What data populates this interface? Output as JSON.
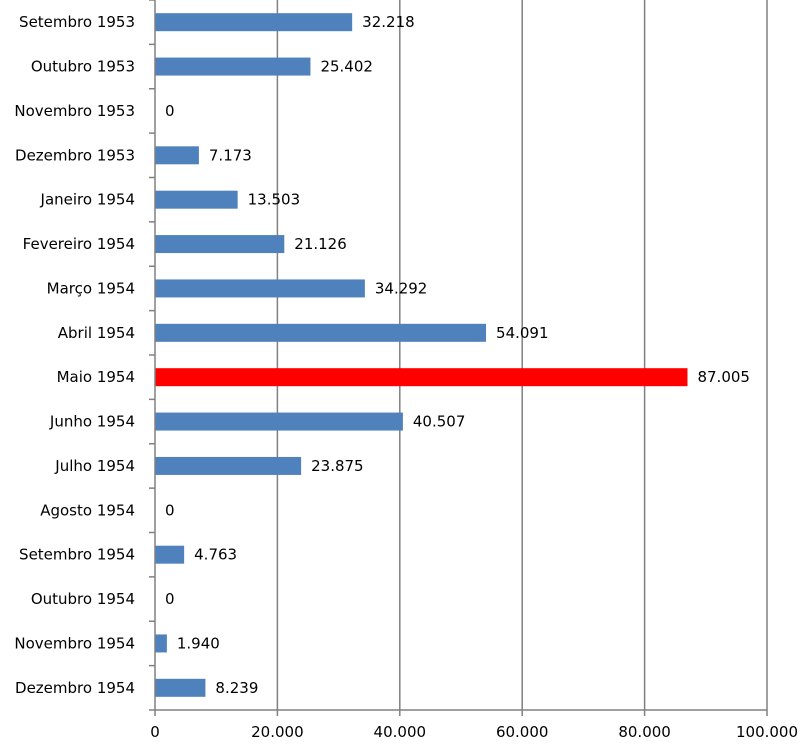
{
  "chart_data": {
    "type": "bar",
    "orientation": "horizontal",
    "categories": [
      "Setembro 1953",
      "Outubro 1953",
      "Novembro 1953",
      "Dezembro 1953",
      "Janeiro 1954",
      "Fevereiro 1954",
      "Março 1954",
      "Abril 1954",
      "Maio 1954",
      "Junho 1954",
      "Julho 1954",
      "Agosto 1954",
      "Setembro 1954",
      "Outubro 1954",
      "Novembro 1954",
      "Dezembro 1954"
    ],
    "values": [
      32218,
      25402,
      0,
      7173,
      13503,
      21126,
      34292,
      54091,
      87005,
      40507,
      23875,
      0,
      4763,
      0,
      1940,
      8239
    ],
    "value_labels": [
      "32.218",
      "25.402",
      "0",
      "7.173",
      "13.503",
      "21.126",
      "34.292",
      "54.091",
      "87.005",
      "40.507",
      "23.875",
      "0",
      "4.763",
      "0",
      "1.940",
      "8.239"
    ],
    "xlim": [
      0,
      100000
    ],
    "x_ticks": [
      0,
      20000,
      40000,
      60000,
      80000,
      100000
    ],
    "x_tick_labels": [
      "0",
      "20.000",
      "40.000",
      "60.000",
      "80.000",
      "100.000"
    ],
    "title": "",
    "xlabel": "",
    "ylabel": "",
    "grid": "vertical",
    "legend": "none",
    "colors": {
      "bar": "#4f81bd",
      "highlight": "#ff0000",
      "grid": "#808080",
      "axis": "#808080"
    },
    "highlight_index": 8
  }
}
